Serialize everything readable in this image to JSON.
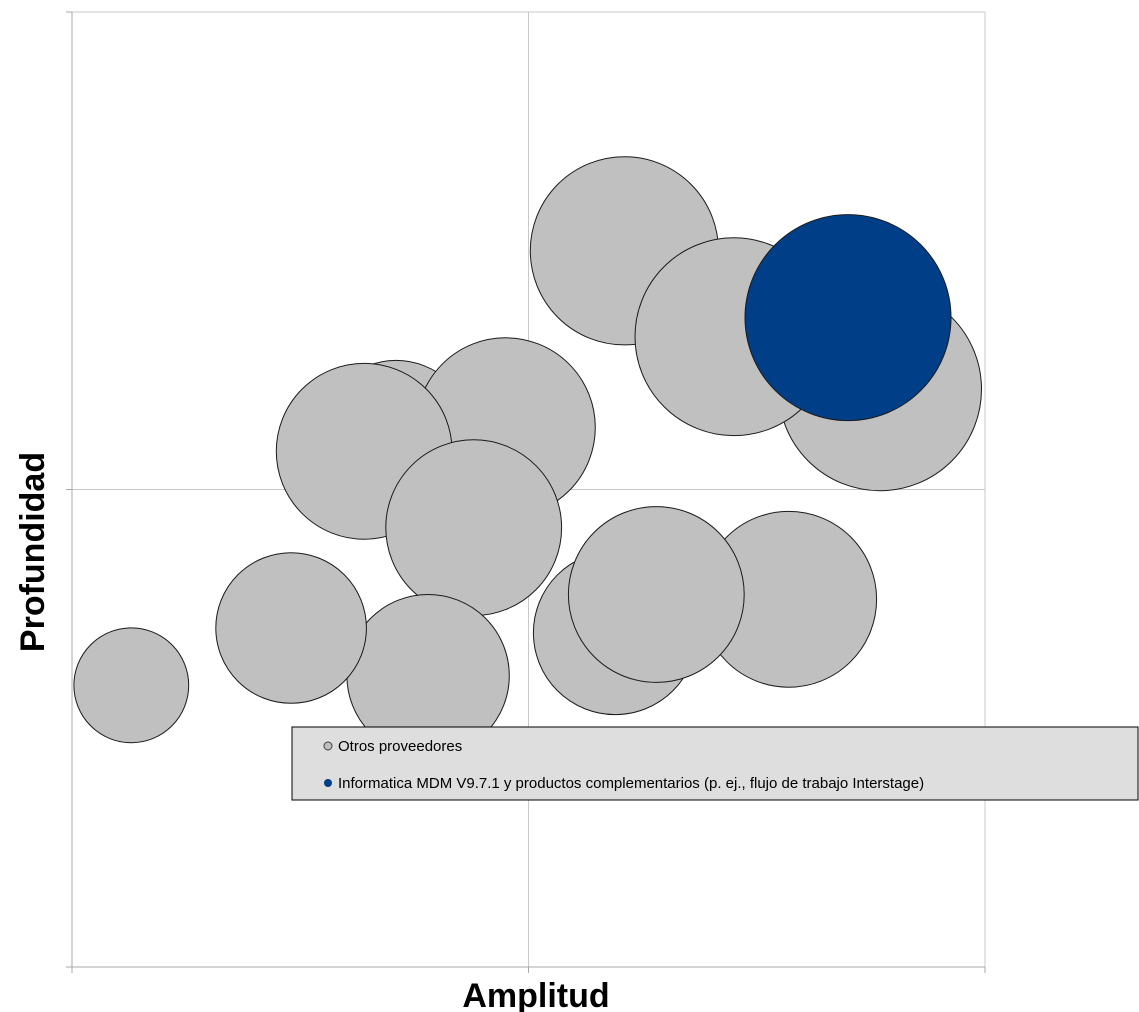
{
  "chart_data": {
    "type": "bubble",
    "xlabel": "Amplitud",
    "ylabel": "Profundidad",
    "xlim": [
      0,
      100
    ],
    "ylim": [
      0,
      100
    ],
    "grid": true,
    "legend_position": "center-right",
    "series": [
      {
        "name": "Otros proveedores",
        "color": "#c0c0c0",
        "points": [
          {
            "x": 35.5,
            "y": 55.5,
            "size": 57
          },
          {
            "x": 47.5,
            "y": 56.5,
            "size": 78
          },
          {
            "x": 32.0,
            "y": 54.0,
            "size": 75
          },
          {
            "x": 60.5,
            "y": 75.0,
            "size": 86
          },
          {
            "x": 88.5,
            "y": 60.5,
            "size": 100
          },
          {
            "x": 72.5,
            "y": 66.0,
            "size": 95
          },
          {
            "x": 44.0,
            "y": 46.0,
            "size": 75
          },
          {
            "x": 78.5,
            "y": 38.5,
            "size": 75
          },
          {
            "x": 59.5,
            "y": 35.0,
            "size": 65
          },
          {
            "x": 64.0,
            "y": 39.0,
            "size": 75
          },
          {
            "x": 39.0,
            "y": 30.5,
            "size": 64
          },
          {
            "x": 24.0,
            "y": 35.5,
            "size": 55
          },
          {
            "x": 6.5,
            "y": 29.5,
            "size": 32
          }
        ]
      },
      {
        "name": "Informatica MDM V9.7.1 y productos complementarios (p. ej., flujo de trabajo Interstage)",
        "color": "#003f87",
        "points": [
          {
            "x": 85.0,
            "y": 68.0,
            "size": 103
          }
        ]
      }
    ]
  },
  "legend": {
    "items": [
      {
        "label": "Otros proveedores",
        "color": "#c0c0c0"
      },
      {
        "label": "Informatica MDM V9.7.1 y productos complementarios (p. ej., flujo de trabajo Interstage)",
        "color": "#003f87"
      }
    ]
  }
}
